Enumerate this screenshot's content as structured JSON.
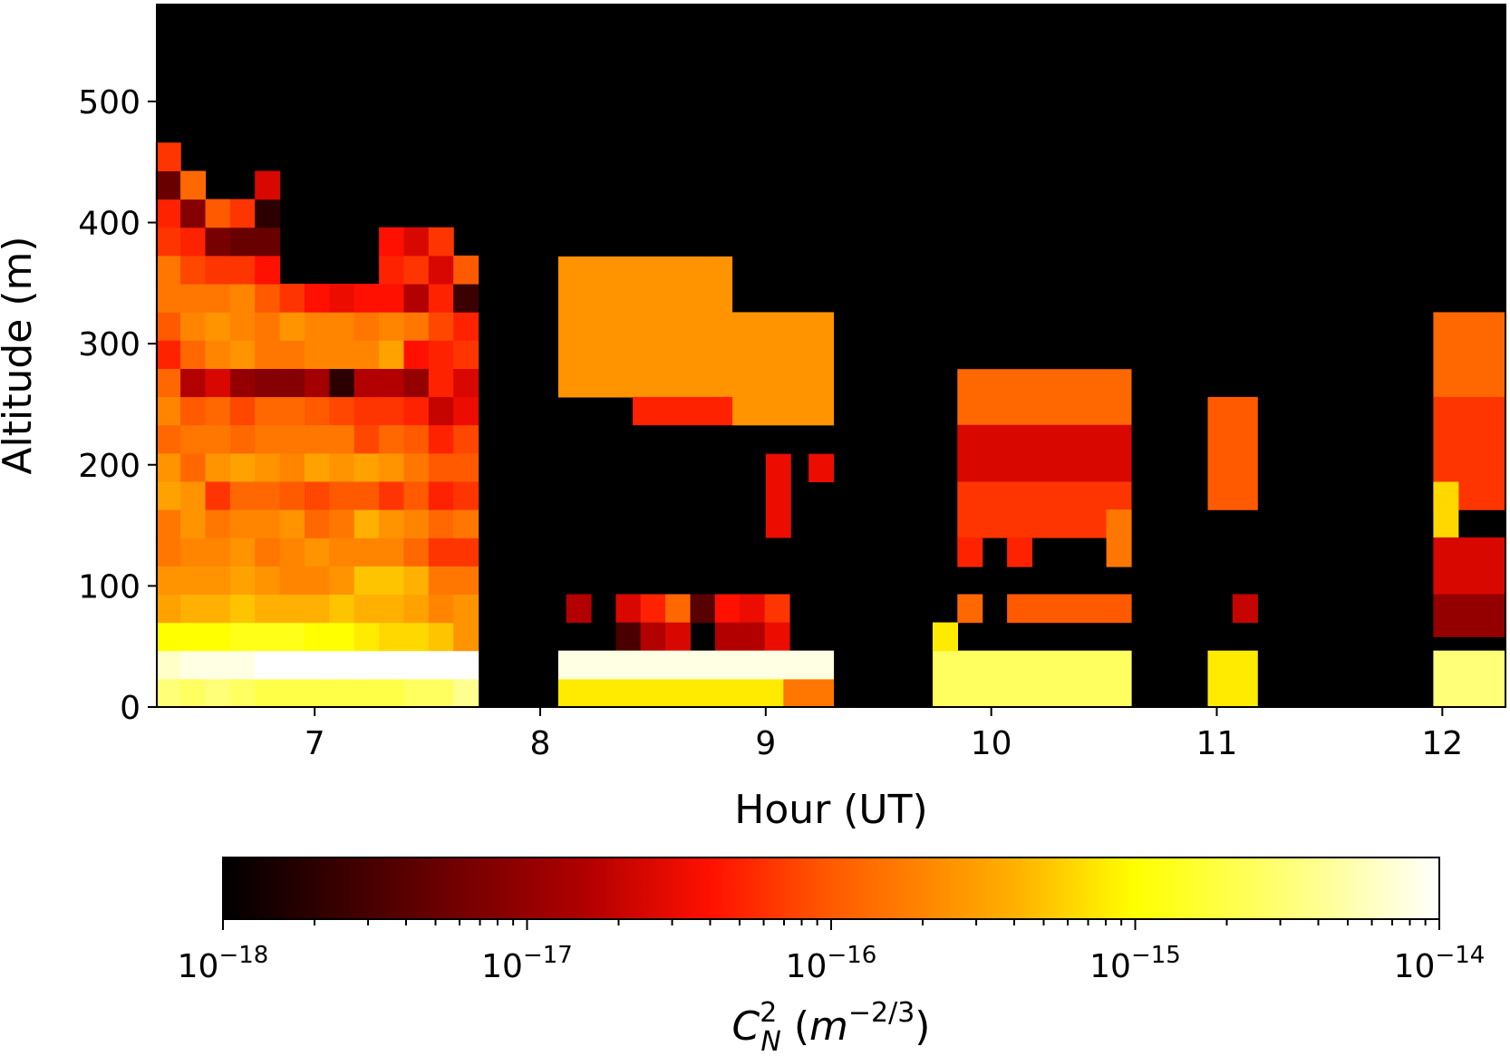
{
  "chart_data": {
    "type": "heatmap",
    "title": "",
    "xlabel": "Hour (UT)",
    "ylabel": "Altitude (m)",
    "xlim": [
      6.3,
      12.28
    ],
    "ylim": [
      0,
      580
    ],
    "x_ticks": [
      7,
      8,
      9,
      10,
      11,
      12
    ],
    "y_ticks": [
      0,
      100,
      200,
      300,
      400,
      500
    ],
    "cell_width_hours": 0.11,
    "cell_height_m": 23.3,
    "colormap": "afmhot",
    "background": "#000000",
    "grid": false,
    "colorbar": {
      "label_main": "C",
      "label_sub": "N",
      "label_sup": "2",
      "label_units_base": "m",
      "label_units_exp": "−2/3",
      "scale": "log",
      "min": 1e-18,
      "max": 1e-14,
      "major_ticks": [
        {
          "base": "10",
          "exp": "−18"
        },
        {
          "base": "10",
          "exp": "−17"
        },
        {
          "base": "10",
          "exp": "−16"
        },
        {
          "base": "10",
          "exp": "−15"
        },
        {
          "base": "10",
          "exp": "−14"
        }
      ],
      "placement": "bottom"
    },
    "columns": [
      {
        "x": 6.35,
        "values": [
          -14.5,
          -14.2,
          -15.0,
          -15.5,
          -15.6,
          -15.8,
          -15.8,
          -15.5,
          -15.6,
          -15.9,
          -15.7,
          -15.9,
          -16.3,
          -16.0,
          -15.8,
          -15.8,
          -16.2,
          -16.3,
          -17.3,
          -16.2
        ]
      },
      {
        "x": 6.46,
        "values": [
          -14.6,
          -14.1,
          -15.0,
          -15.4,
          -15.6,
          -15.7,
          -15.6,
          -15.6,
          -15.9,
          -15.8,
          -16.0,
          -16.8,
          -15.9,
          -15.7,
          -15.8,
          -16.1,
          -16.3,
          -17.1,
          -15.9
        ]
      },
      {
        "x": 6.57,
        "values": [
          -14.5,
          -14.1,
          -15.0,
          -15.4,
          -15.6,
          -15.7,
          -15.8,
          -16.2,
          -15.6,
          -15.8,
          -15.9,
          -16.6,
          -15.7,
          -15.6,
          -15.8,
          -16.2,
          -17.2,
          -16.0
        ]
      },
      {
        "x": 6.68,
        "values": [
          -14.6,
          -14.1,
          -14.9,
          -15.3,
          -15.5,
          -15.6,
          -15.7,
          -15.9,
          -15.5,
          -15.9,
          -16.1,
          -17.0,
          -15.6,
          -15.7,
          -15.7,
          -16.2,
          -17.3,
          -16.2
        ]
      },
      {
        "x": 6.79,
        "values": [
          -14.7,
          -14.0,
          -14.9,
          -15.4,
          -15.6,
          -15.8,
          -15.7,
          -15.9,
          -15.6,
          -15.8,
          -15.9,
          -17.1,
          -15.8,
          -15.8,
          -16.0,
          -16.4,
          -17.3,
          -17.7,
          -16.6
        ]
      },
      {
        "x": 6.9,
        "values": [
          -14.7,
          -14.0,
          -14.9,
          -15.4,
          -15.7,
          -15.7,
          -15.6,
          -16.0,
          -15.7,
          -15.8,
          -15.9,
          -17.1,
          -15.8,
          -15.6,
          -16.2
        ]
      },
      {
        "x": 7.01,
        "values": [
          -14.7,
          -14.0,
          -15.0,
          -15.4,
          -15.7,
          -15.6,
          -15.9,
          -16.1,
          -15.5,
          -15.8,
          -16.0,
          -16.9,
          -15.7,
          -15.7,
          -16.4
        ]
      },
      {
        "x": 7.12,
        "values": [
          -14.7,
          -14.0,
          -15.0,
          -15.3,
          -15.6,
          -15.7,
          -15.8,
          -16.0,
          -15.6,
          -15.8,
          -16.1,
          -17.7,
          -15.7,
          -15.7,
          -16.5
        ]
      },
      {
        "x": 7.23,
        "values": [
          -14.7,
          -14.0,
          -15.1,
          -15.4,
          -15.3,
          -15.7,
          -15.4,
          -16.0,
          -15.5,
          -16.1,
          -16.2,
          -16.8,
          -15.7,
          -15.8,
          -16.4
        ]
      },
      {
        "x": 7.34,
        "values": [
          -14.7,
          -14.0,
          -15.2,
          -15.4,
          -15.3,
          -15.7,
          -15.6,
          -16.2,
          -15.6,
          -15.9,
          -16.2,
          -16.8,
          -15.5,
          -15.7,
          -16.4,
          -16.3,
          -16.4
        ]
      },
      {
        "x": 7.45,
        "values": [
          -14.6,
          -14.0,
          -15.2,
          -15.5,
          -15.4,
          -15.9,
          -15.7,
          -16.0,
          -15.8,
          -16.0,
          -16.3,
          -17.0,
          -16.4,
          -15.8,
          -16.8,
          -16.2,
          -16.6
        ]
      },
      {
        "x": 7.56,
        "values": [
          -14.6,
          -14.0,
          -15.3,
          -15.7,
          -15.8,
          -16.2,
          -15.9,
          -16.3,
          -16.0,
          -16.3,
          -16.7,
          -16.3,
          -16.3,
          -16.1,
          -16.3,
          -16.6,
          -16.2
        ]
      },
      {
        "x": 7.67,
        "values": [
          -14.4,
          -14.0,
          -15.6,
          -15.6,
          -15.8,
          -16.2,
          -15.8,
          -16.2,
          -16.0,
          -16.1,
          -16.5,
          -16.6,
          -16.2,
          -16.3,
          -17.6,
          -16.0
        ]
      }
    ],
    "sparse_cells": [
      {
        "x": 8.17,
        "y": 81.5,
        "v": -16.8
      },
      {
        "x": 8.39,
        "y": 81.5,
        "v": -16.6
      },
      {
        "x": 8.5,
        "y": 81.5,
        "v": -16.3
      },
      {
        "x": 8.61,
        "y": 81.5,
        "v": -15.9
      },
      {
        "x": 8.72,
        "y": 81.5,
        "v": -17.4
      },
      {
        "x": 8.83,
        "y": 81.5,
        "v": -16.4
      },
      {
        "x": 8.94,
        "y": 81.5,
        "v": -16.5
      },
      {
        "x": 9.05,
        "y": 81.5,
        "v": -16.2
      },
      {
        "x": 8.39,
        "y": 58.2,
        "v": -17.5
      },
      {
        "x": 8.5,
        "y": 58.2,
        "v": -16.8
      },
      {
        "x": 8.61,
        "y": 58.2,
        "v": -16.6
      },
      {
        "x": 8.83,
        "y": 58.2,
        "v": -16.8
      },
      {
        "x": 8.94,
        "y": 58.2,
        "v": -16.8
      },
      {
        "x": 9.05,
        "y": 58.2,
        "v": -16.5
      }
    ],
    "blocks": [
      {
        "x0": 8.08,
        "x1": 9.3,
        "y0": 0,
        "y1": 23.3,
        "v": -15.1,
        "v_end": -15.8
      },
      {
        "x0": 8.08,
        "x1": 9.3,
        "y0": 23.3,
        "y1": 46.6,
        "v": -14.1
      },
      {
        "x0": 8.08,
        "x1": 8.85,
        "y0": 256,
        "y1": 372,
        "v": -15.6
      },
      {
        "x0": 8.85,
        "x1": 9.3,
        "y0": 233,
        "y1": 326,
        "v": -15.6
      },
      {
        "x0": 8.41,
        "x1": 8.85,
        "y0": 233,
        "y1": 256,
        "v": -16.3
      },
      {
        "x0": 9.0,
        "x1": 9.11,
        "y0": 140,
        "y1": 209,
        "v": -16.5
      },
      {
        "x0": 9.19,
        "x1": 9.3,
        "y0": 186,
        "y1": 209,
        "v": -16.5
      },
      {
        "x0": 9.74,
        "x1": 10.62,
        "y0": 0,
        "y1": 46.6,
        "v": -14.6
      },
      {
        "x0": 9.74,
        "x1": 9.85,
        "y0": 46.6,
        "y1": 69.9,
        "v": -15.1
      },
      {
        "x0": 9.85,
        "x1": 10.62,
        "y0": 233,
        "y1": 279,
        "v": -15.9
      },
      {
        "x0": 9.85,
        "x1": 10.62,
        "y0": 186,
        "y1": 233,
        "v": -16.6
      },
      {
        "x0": 9.85,
        "x1": 10.62,
        "y0": 140,
        "y1": 186,
        "v": -16.2
      },
      {
        "x0": 9.85,
        "x1": 9.96,
        "y0": 116,
        "y1": 140,
        "v": -16.3
      },
      {
        "x0": 10.07,
        "x1": 10.18,
        "y0": 116,
        "y1": 140,
        "v": -16.3
      },
      {
        "x0": 10.51,
        "x1": 10.62,
        "y0": 116,
        "y1": 163,
        "v": -15.8
      },
      {
        "x0": 9.85,
        "x1": 9.96,
        "y0": 69.9,
        "y1": 93.2,
        "v": -15.9
      },
      {
        "x0": 10.07,
        "x1": 10.62,
        "y0": 69.9,
        "y1": 93.2,
        "v": -16.0
      },
      {
        "x0": 10.96,
        "x1": 11.18,
        "y0": 0,
        "y1": 46.6,
        "v": -15.1
      },
      {
        "x0": 10.96,
        "x1": 11.18,
        "y0": 163,
        "y1": 256,
        "v": -16.0
      },
      {
        "x0": 11.07,
        "x1": 11.18,
        "y0": 69.9,
        "y1": 93.2,
        "v": -16.7
      },
      {
        "x0": 11.96,
        "x1": 12.28,
        "y0": 0,
        "y1": 46.6,
        "v": -14.5
      },
      {
        "x0": 11.96,
        "x1": 12.28,
        "y0": 256,
        "y1": 326,
        "v": -15.9
      },
      {
        "x0": 11.96,
        "x1": 12.28,
        "y0": 163,
        "y1": 256,
        "v": -16.2
      },
      {
        "x0": 11.96,
        "x1": 12.07,
        "y0": 140,
        "y1": 186,
        "v": -15.2
      },
      {
        "x0": 11.96,
        "x1": 12.28,
        "y0": 93.2,
        "y1": 140,
        "v": -16.6
      },
      {
        "x0": 11.96,
        "x1": 12.28,
        "y0": 58.2,
        "y1": 93.2,
        "v": -17.0
      }
    ]
  }
}
